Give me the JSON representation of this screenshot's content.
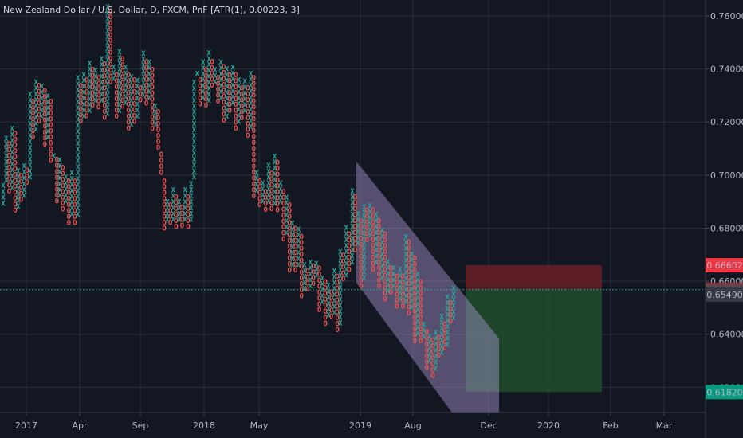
{
  "title": "New Zealand Dollar / U.S. Dollar, D, FXCM, PnF [ATR(1), 0.00223, 3]",
  "colors": {
    "background": "#131722",
    "grid": "#2a2e39",
    "x_color": "#26a69a",
    "o_color": "#ef5350",
    "channel": "#b39ddb",
    "risk": "#6b1f24",
    "reward": "#1f4d2b",
    "current_price_line": "#26a69a"
  },
  "chart_data": {
    "type": "point-and-figure",
    "ylim": [
      0.6105,
      0.766
    ],
    "y_ticks": [
      {
        "value": 0.76,
        "label": "0.76000"
      },
      {
        "value": 0.74,
        "label": "0.74000"
      },
      {
        "value": 0.72,
        "label": "0.72000"
      },
      {
        "value": 0.7,
        "label": "0.70000"
      },
      {
        "value": 0.68,
        "label": "0.68000"
      },
      {
        "value": 0.66,
        "label": "0.66000"
      },
      {
        "value": 0.64,
        "label": "0.64000"
      },
      {
        "value": 0.62,
        "label": "0.62000"
      }
    ],
    "x_ticks": [
      "2017",
      "Apr",
      "Sep",
      "2018",
      "May",
      "2019",
      "Aug",
      "Dec",
      "2020",
      "Feb",
      "Mar"
    ],
    "price_labels": [
      {
        "value": 0.66602,
        "label": "0.66602",
        "color": "#f23645",
        "text_color": "#ffffff"
      },
      {
        "value": 0.6568,
        "label": "0.65680",
        "color": "#7b3b3f",
        "text_color": "#ffffff"
      },
      {
        "value": 0.65562,
        "label": "0.65562",
        "color": "#4a4e59",
        "text_color": "#ffffff"
      },
      {
        "value": 0.6549,
        "label": "0.65490",
        "color": "#363a45",
        "text_color": "#ffffff"
      },
      {
        "value": 0.6182,
        "label": "0.61820",
        "color": "#089981",
        "text_color": "#ffffff"
      }
    ],
    "trade_setup": {
      "entry": 0.6568,
      "stop": 0.66602,
      "target": 0.6182
    },
    "series": [
      {
        "name": "X columns",
        "color": "#26a69a"
      },
      {
        "name": "O columns",
        "color": "#ef5350"
      }
    ],
    "price_path": [
      0.696,
      0.714,
      0.693,
      0.718,
      0.686,
      0.702,
      0.69,
      0.704,
      0.697,
      0.73,
      0.715,
      0.736,
      0.72,
      0.734,
      0.712,
      0.73,
      0.705,
      0.708,
      0.69,
      0.705,
      0.688,
      0.7,
      0.683,
      0.7,
      0.683,
      0.736,
      0.72,
      0.738,
      0.722,
      0.742,
      0.726,
      0.739,
      0.726,
      0.744,
      0.721,
      0.764,
      0.734,
      0.74,
      0.722,
      0.746,
      0.725,
      0.74,
      0.717,
      0.738,
      0.72,
      0.735,
      0.728,
      0.745,
      0.727,
      0.742,
      0.717,
      0.726,
      0.71,
      0.7,
      0.681,
      0.691,
      0.681,
      0.694,
      0.681,
      0.69,
      0.681,
      0.694,
      0.681,
      0.697,
      0.736,
      0.738,
      0.727,
      0.742,
      0.726,
      0.745,
      0.733,
      0.739,
      0.727,
      0.743,
      0.72,
      0.74,
      0.725,
      0.74,
      0.718,
      0.735,
      0.722,
      0.735,
      0.716,
      0.739,
      0.692,
      0.7,
      0.688,
      0.696,
      0.688,
      0.703,
      0.687,
      0.707,
      0.688,
      0.696,
      0.676,
      0.691,
      0.664,
      0.682,
      0.664,
      0.679,
      0.655,
      0.666,
      0.656,
      0.668,
      0.66,
      0.667,
      0.65,
      0.662,
      0.645,
      0.658,
      0.646,
      0.664,
      0.642,
      0.672,
      0.66,
      0.68,
      0.665,
      0.694,
      0.672,
      0.685,
      0.659,
      0.689,
      0.675,
      0.689,
      0.665,
      0.685,
      0.659,
      0.68,
      0.654,
      0.667,
      0.656,
      0.664,
      0.651,
      0.664,
      0.65,
      0.677,
      0.648,
      0.671,
      0.638,
      0.662,
      0.637,
      0.643,
      0.628,
      0.64,
      0.625,
      0.641,
      0.631,
      0.646,
      0.634,
      0.654,
      0.644,
      0.657
    ]
  }
}
